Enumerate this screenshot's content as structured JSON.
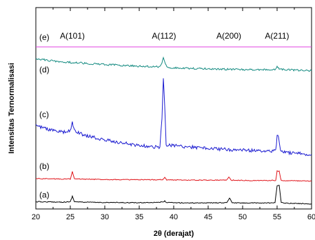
{
  "chart_data": {
    "type": "line",
    "title": "",
    "xlabel": "2θ (derajat)",
    "ylabel": "Intensitas Ternormalisasi",
    "xlim": [
      20,
      60
    ],
    "xticks": [
      "20",
      "25",
      "30",
      "35",
      "40",
      "45",
      "50",
      "55",
      "60"
    ],
    "grid": false,
    "legend": "none",
    "peak_annotations": [
      {
        "label": "A(101)",
        "x": 25.3
      },
      {
        "label": "A(112)",
        "x": 38.6
      },
      {
        "label": "A(200)",
        "x": 48.0
      },
      {
        "label": "A(211)",
        "x": 55.0
      }
    ],
    "series": [
      {
        "name": "(a)",
        "color": "#000000",
        "noise": 0.6,
        "points": [
          [
            20,
            292.5
          ],
          [
            22,
            292.8
          ],
          [
            24,
            293
          ],
          [
            25,
            292.6
          ],
          [
            25.3,
            284.5
          ],
          [
            25.6,
            292.5
          ],
          [
            27,
            293.2
          ],
          [
            30,
            293.6
          ],
          [
            35,
            294
          ],
          [
            38.5,
            293
          ],
          [
            38.7,
            291.5
          ],
          [
            39,
            293.8
          ],
          [
            42,
            294.2
          ],
          [
            47.7,
            294
          ],
          [
            48.1,
            287
          ],
          [
            48.5,
            294.2
          ],
          [
            52,
            294.4
          ],
          [
            54.7,
            294.2
          ],
          [
            55,
            269
          ],
          [
            55.3,
            268.5
          ],
          [
            55.6,
            294
          ],
          [
            57,
            294.8
          ],
          [
            60,
            295.6
          ]
        ]
      },
      {
        "name": "(b)",
        "color": "#e0141a",
        "noise": 0.6,
        "points": [
          [
            20,
            259
          ],
          [
            24,
            259.6
          ],
          [
            25,
            259.5
          ],
          [
            25.3,
            249
          ],
          [
            25.6,
            259.5
          ],
          [
            28,
            260
          ],
          [
            32,
            260.4
          ],
          [
            36,
            260.8
          ],
          [
            38.4,
            260.3
          ],
          [
            38.7,
            257.5
          ],
          [
            39,
            260.8
          ],
          [
            43,
            261.2
          ],
          [
            47.7,
            261
          ],
          [
            48,
            256.5
          ],
          [
            48.3,
            261.2
          ],
          [
            52,
            261.8
          ],
          [
            54.8,
            261.5
          ],
          [
            55,
            248
          ],
          [
            55.3,
            248.5
          ],
          [
            55.6,
            261.8
          ],
          [
            58,
            262.2
          ],
          [
            60,
            262.8
          ]
        ]
      },
      {
        "name": "(c)",
        "color": "#1a1ad0",
        "noise": 2.4,
        "points": [
          [
            20,
            182
          ],
          [
            22,
            188
          ],
          [
            24,
            192
          ],
          [
            25,
            189
          ],
          [
            25.3,
            178
          ],
          [
            25.6,
            190
          ],
          [
            27,
            196
          ],
          [
            30,
            203
          ],
          [
            33,
            208
          ],
          [
            35,
            211
          ],
          [
            37,
            213
          ],
          [
            38,
            213
          ],
          [
            38.3,
            170
          ],
          [
            38.5,
            114
          ],
          [
            38.7,
            155
          ],
          [
            38.9,
            211
          ],
          [
            40,
            211
          ],
          [
            42,
            213
          ],
          [
            45,
            215
          ],
          [
            48,
            217
          ],
          [
            51,
            218
          ],
          [
            53,
            219
          ],
          [
            54.8,
            219
          ],
          [
            55,
            197
          ],
          [
            55.2,
            198
          ],
          [
            55.5,
            219
          ],
          [
            57,
            222
          ],
          [
            60,
            224
          ]
        ]
      },
      {
        "name": "(d)",
        "color": "#138a80",
        "noise": 1.3,
        "points": [
          [
            20,
            85
          ],
          [
            23,
            89
          ],
          [
            26,
            91
          ],
          [
            29,
            93
          ],
          [
            32,
            94.5
          ],
          [
            35,
            96
          ],
          [
            38,
            97
          ],
          [
            38.3,
            90
          ],
          [
            38.5,
            83
          ],
          [
            38.8,
            92
          ],
          [
            39.1,
            98
          ],
          [
            42,
            99
          ],
          [
            46,
            100
          ],
          [
            50,
            101
          ],
          [
            54.8,
            101
          ],
          [
            55,
            97
          ],
          [
            55.3,
            100
          ],
          [
            58,
            102
          ],
          [
            60,
            102.5
          ]
        ]
      },
      {
        "name": "(e)",
        "color": "#e040e0",
        "noise": 0,
        "points": [
          [
            20,
            68
          ],
          [
            60,
            68
          ]
        ]
      }
    ]
  }
}
